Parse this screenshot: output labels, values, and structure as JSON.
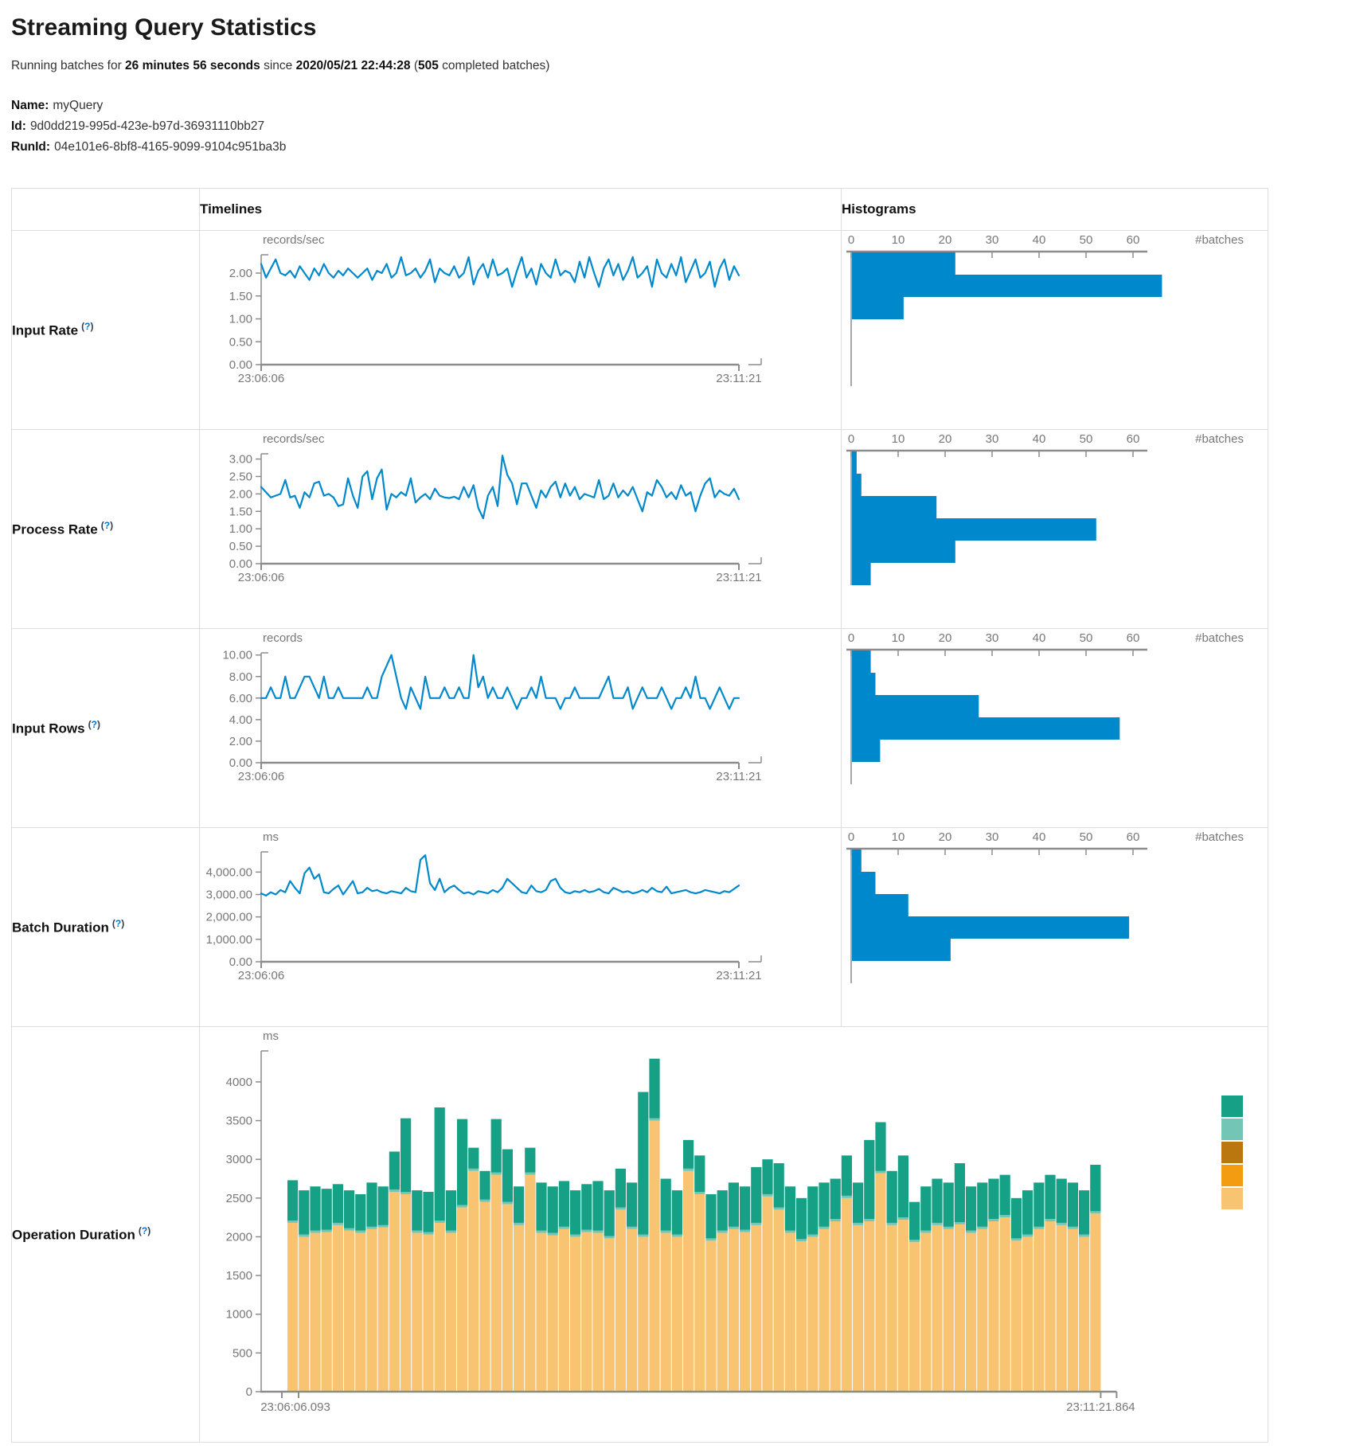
{
  "header": {
    "title": "Streaming Query Statistics",
    "running_prefix": "Running batches for ",
    "running_duration": "26 minutes 56 seconds",
    "running_mid": " since ",
    "running_since_time": "2020/05/21 22:44:28",
    "running_open": " (",
    "running_batches_count": "505",
    "running_suffix": " completed batches)",
    "name_label": "Name:",
    "name_value": "myQuery",
    "id_label": "Id:",
    "id_value": "9d0dd219-995d-423e-b97d-36931110bb27",
    "runid_label": "RunId:",
    "runid_value": "04e101e6-8bf8-4165-9099-9104c951ba3b"
  },
  "table": {
    "timelines_header": "Timelines",
    "histograms_header": "Histograms",
    "help_open": "(",
    "help_marker": "?",
    "help_close": ")",
    "rows": [
      {
        "label": "Input Rate"
      },
      {
        "label": "Process Rate"
      },
      {
        "label": "Input Rows"
      },
      {
        "label": "Batch Duration"
      },
      {
        "label": "Operation Duration"
      }
    ]
  },
  "colors": {
    "line_blue": "#0088cc",
    "hist_blue": "#0088cc",
    "axis_gray": "#8c8c8c",
    "tick_text": "#777777",
    "table_border": "#dddddd",
    "teal": "#16A085",
    "light_teal": "#73C6B6",
    "dark_orange": "#B9770E",
    "orange": "#F39C12",
    "tan": "#F8C471"
  },
  "chart_data": [
    {
      "row": "Input Rate",
      "timeline": {
        "type": "line",
        "unit": "records/sec",
        "x_start": "23:06:06",
        "x_end": "23:11:21",
        "yticks": [
          0,
          0.5,
          1,
          1.5,
          2
        ],
        "ytick_labels": [
          "0.00",
          "0.50",
          "1.00",
          "1.50",
          "2.00"
        ],
        "ymax": 2.4,
        "values": [
          2.2,
          1.9,
          2.1,
          2.3,
          2.0,
          1.95,
          2.05,
          1.9,
          2.15,
          2.0,
          1.85,
          2.1,
          1.95,
          2.2,
          2.0,
          1.9,
          2.05,
          1.95,
          2.1,
          2.0,
          1.9,
          2.0,
          2.1,
          1.85,
          2.05,
          2.0,
          2.2,
          1.9,
          2.0,
          2.35,
          1.95,
          2.0,
          2.1,
          1.9,
          2.05,
          2.3,
          1.8,
          2.1,
          2.0,
          1.95,
          2.15,
          1.9,
          2.0,
          2.35,
          1.75,
          2.05,
          2.2,
          1.9,
          2.3,
          1.95,
          2.0,
          2.1,
          1.7,
          2.05,
          2.35,
          1.9,
          2.1,
          1.75,
          2.2,
          2.0,
          1.9,
          2.3,
          1.95,
          2.05,
          2.0,
          1.8,
          2.25,
          1.9,
          2.35,
          2.0,
          1.7,
          2.1,
          2.3,
          1.95,
          2.2,
          1.85,
          2.05,
          2.35,
          1.9,
          2.0,
          2.15,
          1.7,
          2.3,
          2.0,
          1.9,
          2.2,
          1.95,
          2.35,
          1.8,
          2.05,
          2.3,
          1.9,
          2.0,
          2.25,
          1.7,
          2.1,
          2.3,
          1.85,
          2.15,
          1.95
        ]
      },
      "histogram": {
        "type": "bar",
        "orientation": "horizontal",
        "xticks": [
          0,
          10,
          20,
          30,
          40,
          50,
          60
        ],
        "xlabel": "#batches",
        "values": [
          22,
          66,
          11
        ]
      }
    },
    {
      "row": "Process Rate",
      "timeline": {
        "type": "line",
        "unit": "records/sec",
        "x_start": "23:06:06",
        "x_end": "23:11:21",
        "yticks": [
          0,
          0.5,
          1,
          1.5,
          2,
          2.5,
          3
        ],
        "ytick_labels": [
          "0.00",
          "0.50",
          "1.00",
          "1.50",
          "2.00",
          "2.50",
          "3.00"
        ],
        "ymax": 3.15,
        "values": [
          2.2,
          2.05,
          1.9,
          1.95,
          2.0,
          2.4,
          1.9,
          1.95,
          1.6,
          2.05,
          1.9,
          2.3,
          2.35,
          1.95,
          2.0,
          1.9,
          1.65,
          1.7,
          2.45,
          1.95,
          1.6,
          2.5,
          2.65,
          1.85,
          2.45,
          2.7,
          1.55,
          2.0,
          1.9,
          2.05,
          1.95,
          2.45,
          1.75,
          1.9,
          2.0,
          1.85,
          2.15,
          1.95,
          1.9,
          1.88,
          1.92,
          1.85,
          2.2,
          1.9,
          2.25,
          1.6,
          1.3,
          1.95,
          2.2,
          1.65,
          3.1,
          2.55,
          2.3,
          1.7,
          2.3,
          2.3,
          1.95,
          1.6,
          2.1,
          1.9,
          2.2,
          2.35,
          1.9,
          2.3,
          1.95,
          2.2,
          1.85,
          2.0,
          1.95,
          1.9,
          2.4,
          1.85,
          1.95,
          2.3,
          1.9,
          2.1,
          1.95,
          2.2,
          1.85,
          1.5,
          2.05,
          1.95,
          2.4,
          2.2,
          1.9,
          2.05,
          1.85,
          2.25,
          1.95,
          2.05,
          1.5,
          1.95,
          2.3,
          2.45,
          1.9,
          2.1,
          2.0,
          1.95,
          2.15,
          1.85
        ]
      },
      "histogram": {
        "type": "bar",
        "orientation": "horizontal",
        "xticks": [
          0,
          10,
          20,
          30,
          40,
          50,
          60
        ],
        "xlabel": "#batches",
        "values": [
          1,
          2,
          18,
          52,
          22,
          4
        ]
      }
    },
    {
      "row": "Input Rows",
      "timeline": {
        "type": "line",
        "unit": "records",
        "x_start": "23:06:06",
        "x_end": "23:11:21",
        "yticks": [
          0,
          2,
          4,
          6,
          8,
          10
        ],
        "ytick_labels": [
          "0.00",
          "2.00",
          "4.00",
          "6.00",
          "8.00",
          "10.00"
        ],
        "ymax": 10.2,
        "values": [
          6,
          6,
          7,
          6,
          6,
          8,
          6,
          6,
          7,
          8,
          8,
          7,
          6,
          8,
          6,
          6,
          7,
          6,
          6,
          6,
          6,
          6,
          7,
          6,
          6,
          8,
          9,
          10,
          8,
          6,
          5,
          7,
          6,
          5,
          8,
          6,
          6,
          6,
          7,
          6,
          6,
          7,
          6,
          6,
          10,
          7,
          8,
          6,
          7,
          6,
          6,
          7,
          6,
          5,
          6,
          6,
          7,
          6,
          8,
          6,
          6,
          6,
          5,
          6,
          6,
          7,
          6,
          6,
          6,
          6,
          6,
          7,
          8,
          6,
          6,
          6,
          7,
          5,
          6,
          7,
          6,
          6,
          6,
          7,
          6,
          5,
          6,
          6,
          7,
          6,
          8,
          6,
          6,
          5,
          6,
          7,
          6,
          5,
          6,
          6
        ]
      },
      "histogram": {
        "type": "bar",
        "orientation": "horizontal",
        "xticks": [
          0,
          10,
          20,
          30,
          40,
          50,
          60
        ],
        "xlabel": "#batches",
        "values": [
          4,
          5,
          27,
          57,
          6
        ]
      }
    },
    {
      "row": "Batch Duration",
      "timeline": {
        "type": "line",
        "unit": "ms",
        "x_start": "23:06:06",
        "x_end": "23:11:21",
        "yticks": [
          0,
          1000,
          2000,
          3000,
          4000
        ],
        "ytick_labels": [
          "0.00",
          "1,000.00",
          "2,000.00",
          "3,000.00",
          "4,000.00"
        ],
        "ymax": 4900,
        "values": [
          3050,
          2950,
          3100,
          3000,
          3200,
          3100,
          3600,
          3300,
          3050,
          3950,
          4200,
          3700,
          3900,
          3100,
          3050,
          3250,
          3400,
          3000,
          3300,
          3600,
          3050,
          3100,
          3300,
          3150,
          3200,
          3100,
          3050,
          3150,
          3100,
          3050,
          3300,
          3150,
          3100,
          4550,
          4750,
          3500,
          3200,
          3700,
          3100,
          3300,
          3400,
          3200,
          3050,
          3100,
          3000,
          3150,
          3100,
          3050,
          3200,
          3100,
          3300,
          3700,
          3500,
          3300,
          3100,
          3050,
          3400,
          3150,
          3100,
          3200,
          3600,
          3700,
          3300,
          3100,
          3050,
          3150,
          3100,
          3200,
          3100,
          3150,
          3250,
          3100,
          3050,
          3300,
          3200,
          3100,
          3150,
          3050,
          3100,
          3200,
          3100,
          3300,
          3150,
          3100,
          3350,
          3050,
          3100,
          3150,
          3200,
          3100,
          3050,
          3100,
          3200,
          3150,
          3100,
          3050,
          3150,
          3100,
          3250,
          3400
        ]
      },
      "histogram": {
        "type": "bar",
        "orientation": "horizontal",
        "xticks": [
          0,
          10,
          20,
          30,
          40,
          50,
          60
        ],
        "xlabel": "#batches",
        "values": [
          2,
          5,
          12,
          59,
          21
        ]
      }
    },
    {
      "row": "Operation Duration",
      "timeline": {
        "type": "stacked-bar",
        "unit": "ms",
        "x_start": "23:06:06.093",
        "x_end": "23:11:21.864",
        "yticks": [
          0,
          500,
          1000,
          1500,
          2000,
          2500,
          3000,
          3500,
          4000
        ],
        "ytick_labels": [
          "0",
          "500",
          "1000",
          "1500",
          "2000",
          "2500",
          "3000",
          "3500",
          "4000"
        ],
        "ymax": 4400,
        "legend_colors": [
          "#16A085",
          "#73C6B6",
          "#B9770E",
          "#F39C12",
          "#F8C471"
        ],
        "series": [
          {
            "name": "bottom-tan",
            "color": "#F8C471",
            "values": [
              2180,
              2000,
              2050,
              2060,
              2150,
              2080,
              2050,
              2100,
              2120,
              2580,
              2550,
              2050,
              2030,
              2180,
              2050,
              2380,
              2850,
              2450,
              2800,
              2420,
              2150,
              2800,
              2050,
              2020,
              2100,
              2000,
              2060,
              2050,
              1980,
              2350,
              2100,
              2000,
              3500,
              2050,
              2000,
              2850,
              2550,
              1950,
              2050,
              2100,
              2060,
              2150,
              2520,
              2350,
              2050,
              1940,
              2000,
              2100,
              2200,
              2500,
              2150,
              2200,
              2820,
              2150,
              2220,
              1930,
              2050,
              2150,
              2100,
              2160,
              2050,
              2100,
              2200,
              2250,
              1950,
              2000,
              2100,
              2200,
              2150,
              2100,
              2000,
              2300
            ]
          },
          {
            "name": "mid-light-teal",
            "color": "#73C6B6",
            "values": [
              30,
              30,
              30,
              30,
              30,
              30,
              30,
              30,
              30,
              30,
              30,
              30,
              30,
              30,
              30,
              30,
              30,
              30,
              30,
              30,
              30,
              30,
              30,
              30,
              30,
              30,
              30,
              30,
              30,
              30,
              30,
              30,
              30,
              30,
              30,
              30,
              30,
              30,
              30,
              30,
              30,
              30,
              30,
              30,
              30,
              30,
              30,
              30,
              30,
              30,
              30,
              30,
              30,
              30,
              30,
              30,
              30,
              30,
              30,
              30,
              30,
              30,
              30,
              30,
              30,
              30,
              30,
              30,
              30,
              30,
              30,
              30
            ]
          },
          {
            "name": "top-teal",
            "color": "#16A085",
            "values": [
              520,
              570,
              570,
              530,
              500,
              490,
              470,
              570,
              500,
              490,
              950,
              520,
              520,
              1460,
              520,
              1110,
              270,
              370,
              690,
              680,
              470,
              320,
              620,
              600,
              590,
              570,
              590,
              640,
              590,
              500,
              570,
              1840,
              770,
              670,
              570,
              370,
              470,
              570,
              520,
              570,
              560,
              720,
              450,
              570,
              570,
              530,
              620,
              570,
              520,
              520,
              520,
              1020,
              630,
              670,
              800,
              490,
              570,
              570,
              570,
              760,
              570,
              570,
              520,
              520,
              520,
              570,
              570,
              570,
              570,
              570,
              570,
              600
            ]
          }
        ]
      }
    }
  ]
}
